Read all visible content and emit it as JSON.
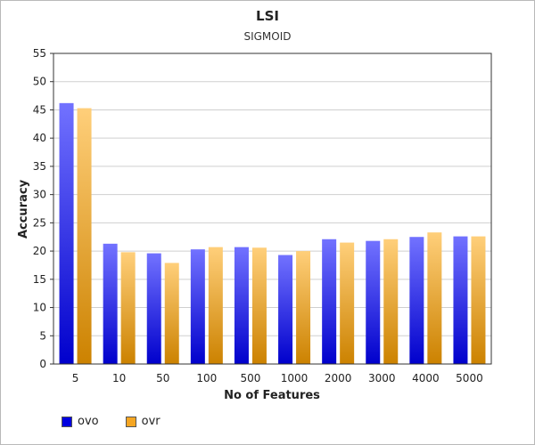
{
  "chart_data": {
    "type": "bar",
    "title": "LSI",
    "subtitle": "SIGMOID",
    "xlabel": "No of Features",
    "ylabel": "Accuracy",
    "categories": [
      "5",
      "10",
      "50",
      "100",
      "500",
      "1000",
      "2000",
      "3000",
      "4000",
      "5000"
    ],
    "ylim": [
      0,
      55
    ],
    "yticks": [
      0,
      5,
      10,
      15,
      20,
      25,
      30,
      35,
      40,
      45,
      50,
      55
    ],
    "grid": true,
    "legend_position": "bottom-left",
    "series": [
      {
        "name": "ovo",
        "values": [
          46.2,
          21.3,
          19.6,
          20.3,
          20.7,
          19.3,
          22.1,
          21.8,
          22.5,
          22.6
        ],
        "color_top": "#7272ff",
        "color_bottom": "#0000cc",
        "legend_color": "#0000e0"
      },
      {
        "name": "ovr",
        "values": [
          45.3,
          19.8,
          17.9,
          20.7,
          20.6,
          20.0,
          21.5,
          22.1,
          23.3,
          22.6
        ],
        "color_top": "#ffcf7a",
        "color_bottom": "#cc8200",
        "legend_color": "#f5a623"
      }
    ]
  }
}
